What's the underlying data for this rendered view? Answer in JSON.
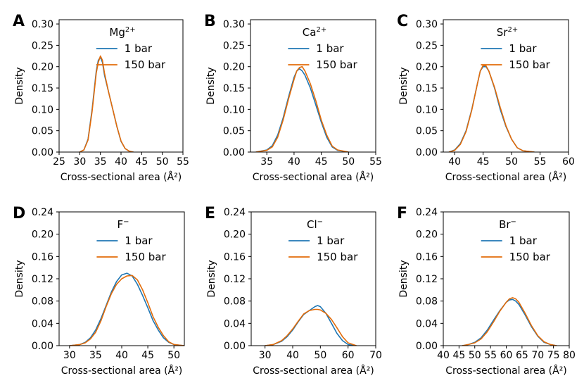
{
  "figure": {
    "legend_labels": [
      "1 bar",
      "150 bar"
    ],
    "series_colors": [
      "#1f77b4",
      "#e36c0a"
    ]
  },
  "chart_data": [
    {
      "type": "line",
      "panel": "A",
      "ion": "Mg",
      "charge": "2+",
      "xlabel": "Cross-sectional area (Å²)",
      "ylabel": "Density",
      "xlim": [
        25,
        55
      ],
      "ylim": [
        0,
        0.31
      ],
      "xticks": [
        25,
        30,
        35,
        40,
        45,
        50,
        55
      ],
      "yticks": [
        "0.00",
        "0.05",
        "0.10",
        "0.15",
        "0.20",
        "0.25",
        "0.30"
      ],
      "series": [
        {
          "name": "1 bar",
          "x": [
            30,
            31,
            32,
            33,
            34,
            34.5,
            35,
            35.5,
            36,
            37,
            38,
            39,
            40,
            41,
            42,
            43
          ],
          "values": [
            0,
            0.005,
            0.03,
            0.1,
            0.19,
            0.215,
            0.222,
            0.21,
            0.18,
            0.14,
            0.1,
            0.06,
            0.025,
            0.008,
            0.002,
            0
          ]
        },
        {
          "name": "150 bar",
          "x": [
            30,
            31,
            32,
            33,
            34,
            34.5,
            35,
            35.5,
            36,
            37,
            38,
            39,
            40,
            41,
            42,
            43
          ],
          "values": [
            0,
            0.005,
            0.028,
            0.095,
            0.185,
            0.21,
            0.225,
            0.215,
            0.185,
            0.14,
            0.1,
            0.06,
            0.026,
            0.008,
            0.002,
            0
          ]
        }
      ]
    },
    {
      "type": "line",
      "panel": "B",
      "ion": "Ca",
      "charge": "2+",
      "xlabel": "Cross-sectional area (Å²)",
      "ylabel": "Density",
      "xlim": [
        32,
        55
      ],
      "ylim": [
        0,
        0.31
      ],
      "xticks": [
        35,
        40,
        45,
        50,
        55
      ],
      "yticks": [
        "0.00",
        "0.05",
        "0.10",
        "0.15",
        "0.20",
        "0.25",
        "0.30"
      ],
      "series": [
        {
          "name": "1 bar",
          "x": [
            33,
            35,
            36,
            37,
            38,
            39,
            40,
            40.5,
            41,
            41.5,
            42,
            43,
            44,
            45,
            46,
            47,
            48,
            50
          ],
          "values": [
            0,
            0.005,
            0.015,
            0.04,
            0.08,
            0.13,
            0.175,
            0.19,
            0.195,
            0.19,
            0.18,
            0.15,
            0.11,
            0.07,
            0.035,
            0.012,
            0.004,
            0
          ]
        },
        {
          "name": "150 bar",
          "x": [
            33,
            35,
            36,
            37,
            38,
            39,
            40,
            40.5,
            41,
            41.5,
            42,
            43,
            44,
            45,
            46,
            47,
            48,
            50
          ],
          "values": [
            0,
            0.004,
            0.012,
            0.035,
            0.075,
            0.125,
            0.17,
            0.19,
            0.198,
            0.2,
            0.19,
            0.16,
            0.12,
            0.075,
            0.04,
            0.014,
            0.005,
            0
          ]
        }
      ]
    },
    {
      "type": "line",
      "panel": "C",
      "ion": "Sr",
      "charge": "2+",
      "xlabel": "Cross-sectional area (Å²)",
      "ylabel": "Density",
      "xlim": [
        38,
        60
      ],
      "ylim": [
        0,
        0.31
      ],
      "xticks": [
        40,
        45,
        50,
        55,
        60
      ],
      "yticks": [
        "0.00",
        "0.05",
        "0.10",
        "0.15",
        "0.20",
        "0.25",
        "0.30"
      ],
      "series": [
        {
          "name": "1 bar",
          "x": [
            39,
            40,
            41,
            42,
            43,
            44,
            44.5,
            45,
            45.5,
            46,
            47,
            48,
            49,
            50,
            51,
            52,
            54
          ],
          "values": [
            0,
            0.005,
            0.02,
            0.05,
            0.1,
            0.16,
            0.19,
            0.2,
            0.2,
            0.19,
            0.15,
            0.1,
            0.06,
            0.03,
            0.01,
            0.003,
            0
          ]
        },
        {
          "name": "150 bar",
          "x": [
            39,
            40,
            41,
            42,
            43,
            44,
            44.5,
            45,
            45.5,
            46,
            47,
            48,
            49,
            50,
            51,
            52,
            54
          ],
          "values": [
            0,
            0.004,
            0.018,
            0.048,
            0.098,
            0.16,
            0.19,
            0.203,
            0.202,
            0.19,
            0.152,
            0.105,
            0.062,
            0.03,
            0.01,
            0.003,
            0
          ]
        }
      ]
    },
    {
      "type": "line",
      "panel": "D",
      "ion": "F",
      "charge": "−",
      "xlabel": "Cross-sectional area (Å²)",
      "ylabel": "Density",
      "xlim": [
        28,
        52
      ],
      "ylim": [
        0,
        0.24
      ],
      "xticks": [
        30,
        35,
        40,
        45,
        50
      ],
      "yticks": [
        "0.00",
        "0.04",
        "0.08",
        "0.12",
        "0.16",
        "0.20",
        "0.24"
      ],
      "series": [
        {
          "name": "1 bar",
          "x": [
            30,
            32,
            33,
            34,
            35,
            36,
            37,
            38,
            39,
            40,
            41,
            42,
            43,
            44,
            45,
            46,
            47,
            48,
            49,
            50,
            52
          ],
          "values": [
            0,
            0.002,
            0.006,
            0.014,
            0.028,
            0.048,
            0.072,
            0.096,
            0.115,
            0.127,
            0.13,
            0.125,
            0.11,
            0.09,
            0.068,
            0.045,
            0.028,
            0.014,
            0.006,
            0.002,
            0
          ]
        },
        {
          "name": "150 bar",
          "x": [
            30,
            32,
            33,
            34,
            35,
            36,
            37,
            38,
            39,
            40,
            41,
            42,
            43,
            44,
            45,
            46,
            47,
            48,
            49,
            50,
            52
          ],
          "values": [
            0,
            0.002,
            0.005,
            0.012,
            0.024,
            0.044,
            0.07,
            0.093,
            0.11,
            0.12,
            0.125,
            0.126,
            0.118,
            0.1,
            0.077,
            0.052,
            0.033,
            0.018,
            0.007,
            0.002,
            0
          ]
        }
      ]
    },
    {
      "type": "line",
      "panel": "E",
      "ion": "Cl",
      "charge": "−",
      "xlabel": "Cross-sectional area (Å²)",
      "ylabel": "Density",
      "xlim": [
        25,
        70
      ],
      "ylim": [
        0,
        0.24
      ],
      "xticks": [
        30,
        40,
        50,
        60,
        70
      ],
      "yticks": [
        "0.00",
        "0.04",
        "0.08",
        "0.12",
        "0.16",
        "0.20",
        "0.24"
      ],
      "series": [
        {
          "name": "1 bar",
          "x": [
            30,
            33,
            36,
            38,
            40,
            42,
            44,
            46,
            48,
            49,
            50,
            52,
            54,
            56,
            58,
            60,
            63
          ],
          "values": [
            0,
            0.002,
            0.008,
            0.016,
            0.028,
            0.043,
            0.056,
            0.063,
            0.07,
            0.072,
            0.07,
            0.058,
            0.04,
            0.022,
            0.009,
            0.002,
            0
          ]
        },
        {
          "name": "150 bar",
          "x": [
            30,
            33,
            36,
            38,
            40,
            42,
            44,
            46,
            48,
            49,
            50,
            52,
            54,
            56,
            58,
            60,
            63
          ],
          "values": [
            0,
            0.002,
            0.009,
            0.018,
            0.03,
            0.044,
            0.057,
            0.063,
            0.065,
            0.065,
            0.064,
            0.058,
            0.047,
            0.032,
            0.016,
            0.005,
            0
          ]
        }
      ]
    },
    {
      "type": "line",
      "panel": "F",
      "ion": "Br",
      "charge": "−",
      "xlabel": "Cross-sectional area (Å²)",
      "ylabel": "Density",
      "xlim": [
        40,
        80
      ],
      "ylim": [
        0,
        0.24
      ],
      "xticks": [
        40,
        45,
        50,
        55,
        60,
        65,
        70,
        75,
        80
      ],
      "yticks": [
        "0.00",
        "0.04",
        "0.08",
        "0.12",
        "0.16",
        "0.20",
        "0.24"
      ],
      "series": [
        {
          "name": "1 bar",
          "x": [
            46,
            48,
            50,
            52,
            54,
            56,
            58,
            60,
            61,
            62,
            63,
            64,
            66,
            68,
            70,
            72,
            74,
            76
          ],
          "values": [
            0,
            0.002,
            0.006,
            0.014,
            0.028,
            0.046,
            0.063,
            0.078,
            0.082,
            0.083,
            0.08,
            0.074,
            0.055,
            0.034,
            0.017,
            0.006,
            0.002,
            0
          ]
        },
        {
          "name": "150 bar",
          "x": [
            46,
            48,
            50,
            52,
            54,
            56,
            58,
            60,
            61,
            62,
            63,
            64,
            66,
            68,
            70,
            72,
            74,
            76
          ],
          "values": [
            0,
            0.002,
            0.005,
            0.012,
            0.025,
            0.043,
            0.062,
            0.078,
            0.084,
            0.086,
            0.084,
            0.078,
            0.058,
            0.036,
            0.018,
            0.007,
            0.002,
            0
          ]
        }
      ]
    }
  ]
}
